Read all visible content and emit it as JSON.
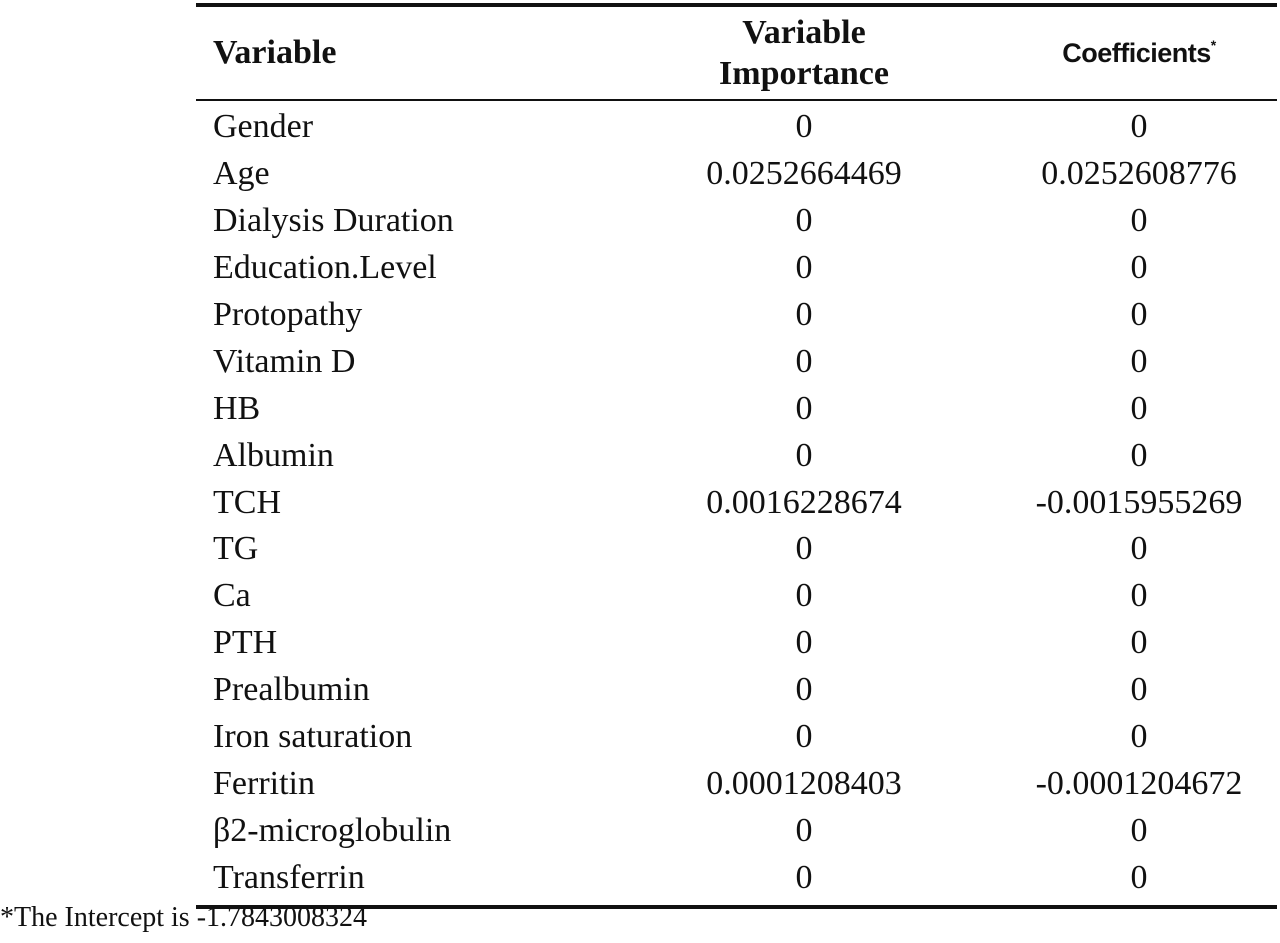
{
  "table": {
    "headers": {
      "variable": "Variable",
      "importance_line1": "Variable",
      "importance_line2": "Importance",
      "coefficients": "Coefficients",
      "coefficients_marker": "*"
    },
    "rows": [
      {
        "variable": "Gender",
        "importance": "0",
        "coefficient": "0"
      },
      {
        "variable": "Age",
        "importance": "0.0252664469",
        "coefficient": "0.0252608776"
      },
      {
        "variable": "Dialysis Duration",
        "importance": "0",
        "coefficient": "0"
      },
      {
        "variable": "Education.Level",
        "importance": "0",
        "coefficient": "0"
      },
      {
        "variable": "Protopathy",
        "importance": "0",
        "coefficient": "0"
      },
      {
        "variable": "Vitamin D",
        "importance": "0",
        "coefficient": "0"
      },
      {
        "variable": "HB",
        "importance": "0",
        "coefficient": "0"
      },
      {
        "variable": "Albumin",
        "importance": "0",
        "coefficient": "0"
      },
      {
        "variable": "TCH",
        "importance": "0.0016228674",
        "coefficient": "-0.0015955269"
      },
      {
        "variable": "TG",
        "importance": "0",
        "coefficient": "0"
      },
      {
        "variable": "Ca",
        "importance": "0",
        "coefficient": "0"
      },
      {
        "variable": "PTH",
        "importance": "0",
        "coefficient": "0"
      },
      {
        "variable": "Prealbumin",
        "importance": "0",
        "coefficient": "0"
      },
      {
        "variable": "Iron saturation",
        "importance": "0",
        "coefficient": "0"
      },
      {
        "variable": "Ferritin",
        "importance": "0.0001208403",
        "coefficient": "-0.0001204672"
      },
      {
        "variable": "β2-microglobulin",
        "importance": "0",
        "coefficient": "0"
      },
      {
        "variable": "Transferrin",
        "importance": "0",
        "coefficient": "0"
      }
    ]
  },
  "footnote": "*The Intercept is -1.7843008324"
}
